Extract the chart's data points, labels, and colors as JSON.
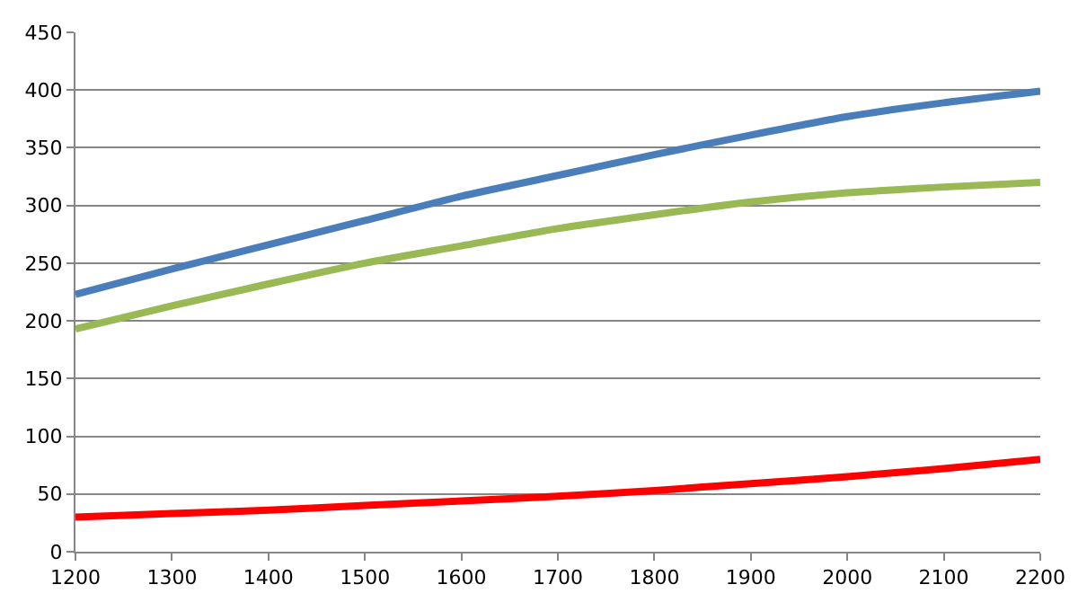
{
  "chart_data": {
    "type": "line",
    "x": [
      1200,
      1300,
      1400,
      1500,
      1600,
      1700,
      1800,
      1900,
      2000,
      2100,
      2200
    ],
    "series": [
      {
        "color": "#4a7ebb",
        "values": [
          223,
          245,
          266,
          287,
          308,
          326,
          344,
          361,
          377,
          389,
          399
        ]
      },
      {
        "color": "#98b954",
        "values": [
          193,
          213,
          232,
          250,
          265,
          280,
          292,
          303,
          311,
          316,
          320
        ]
      },
      {
        "color": "#ff0000",
        "values": [
          30,
          33,
          36,
          40,
          44,
          48,
          53,
          59,
          65,
          72,
          80
        ]
      }
    ],
    "xlim": [
      1200,
      2200
    ],
    "xticks": [
      1200,
      1300,
      1400,
      1500,
      1600,
      1700,
      1800,
      1900,
      2000,
      2100,
      2200
    ],
    "ylim": [
      0,
      450
    ],
    "yticks": [
      0,
      50,
      100,
      150,
      200,
      250,
      300,
      350,
      400,
      450
    ],
    "grid": "y",
    "marker": "none",
    "line_style": "solid"
  }
}
